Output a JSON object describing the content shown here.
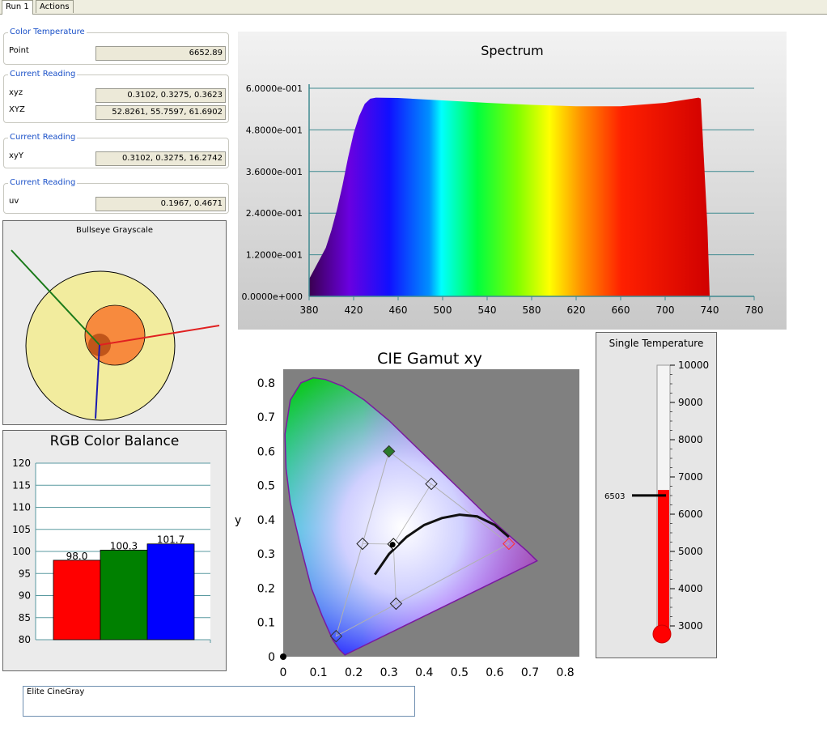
{
  "tabs": [
    {
      "label": "Run 1",
      "active": true
    },
    {
      "label": "Actions",
      "active": false
    }
  ],
  "color_temperature": {
    "title": "Color Temperature",
    "rows": [
      {
        "label": "Point",
        "value": "6652.89"
      }
    ]
  },
  "reading_xyz": {
    "title": "Current Reading",
    "rows": [
      {
        "label": "xyz",
        "value": "0.3102, 0.3275, 0.3623"
      },
      {
        "label": "XYZ",
        "value": "52.8261, 55.7597, 61.6902"
      }
    ]
  },
  "reading_xyY": {
    "title": "Current Reading",
    "rows": [
      {
        "label": "xyY",
        "value": "0.3102, 0.3275, 16.2742"
      }
    ]
  },
  "reading_uv": {
    "title": "Current Reading",
    "rows": [
      {
        "label": "uv",
        "value": "0.1967, 0.4671"
      }
    ]
  },
  "bullseye": {
    "title": "Bullseye Grayscale"
  },
  "rgb_balance": {
    "title": "RGB Color Balance",
    "y_ticks": [
      "120",
      "115",
      "110",
      "105",
      "100",
      "95",
      "90",
      "85",
      "80"
    ],
    "ylim": [
      80,
      120
    ],
    "bars": [
      {
        "label": "98.0",
        "value": 98.0,
        "color": "#ff0000"
      },
      {
        "label": "100.3",
        "value": 100.3,
        "color": "#008000"
      },
      {
        "label": "101.7",
        "value": 101.7,
        "color": "#0000ff"
      }
    ]
  },
  "spectrum": {
    "title": "Spectrum",
    "y_ticks": [
      "6.0000e-001",
      "4.8000e-001",
      "3.6000e-001",
      "2.4000e-001",
      "1.2000e-001",
      "0.0000e+000"
    ],
    "x_ticks": [
      "380",
      "420",
      "460",
      "500",
      "540",
      "580",
      "620",
      "660",
      "700",
      "740",
      "780"
    ],
    "xlim": [
      380,
      780
    ],
    "ylim": [
      0,
      0.6
    ],
    "x": [
      380,
      385,
      390,
      395,
      400,
      405,
      410,
      415,
      420,
      425,
      430,
      435,
      440,
      460,
      500,
      540,
      580,
      620,
      660,
      700,
      710,
      720,
      730,
      732,
      738,
      740
    ],
    "y": [
      0.05,
      0.08,
      0.11,
      0.14,
      0.19,
      0.25,
      0.32,
      0.4,
      0.47,
      0.52,
      0.555,
      0.57,
      0.573,
      0.572,
      0.565,
      0.558,
      0.552,
      0.548,
      0.548,
      0.558,
      0.563,
      0.568,
      0.573,
      0.57,
      0.2,
      0.0
    ]
  },
  "cie": {
    "title": "CIE Gamut xy",
    "xlabel": "x",
    "ylabel": "y",
    "x_ticks": [
      "0",
      "0.1",
      "0.2",
      "0.3",
      "0.4",
      "0.5",
      "0.6",
      "0.7",
      "0.8"
    ],
    "y_ticks": [
      "0",
      "0.1",
      "0.2",
      "0.3",
      "0.4",
      "0.5",
      "0.6",
      "0.7",
      "0.8"
    ],
    "xlim": [
      0,
      0.84
    ],
    "ylim": [
      0,
      0.84
    ],
    "primaries": [
      {
        "x": 0.64,
        "y": 0.33
      },
      {
        "x": 0.3,
        "y": 0.6
      },
      {
        "x": 0.15,
        "y": 0.06
      }
    ],
    "secondaries": [
      {
        "x": 0.42,
        "y": 0.505
      },
      {
        "x": 0.225,
        "y": 0.33
      },
      {
        "x": 0.32,
        "y": 0.155
      }
    ],
    "white_target": {
      "x": 0.3127,
      "y": 0.329
    },
    "measured": {
      "x": 0.3102,
      "y": 0.3275
    }
  },
  "thermometer": {
    "title": "Single Temperature",
    "ticks": [
      "10000",
      "9000",
      "8000",
      "7000",
      "6000",
      "5000",
      "4000",
      "3000"
    ],
    "range": [
      3000,
      10000
    ],
    "marker_label": "6503",
    "marker_value": 6503,
    "fill_value": 6650
  },
  "notes": {
    "value": "Elite CineGray"
  }
}
